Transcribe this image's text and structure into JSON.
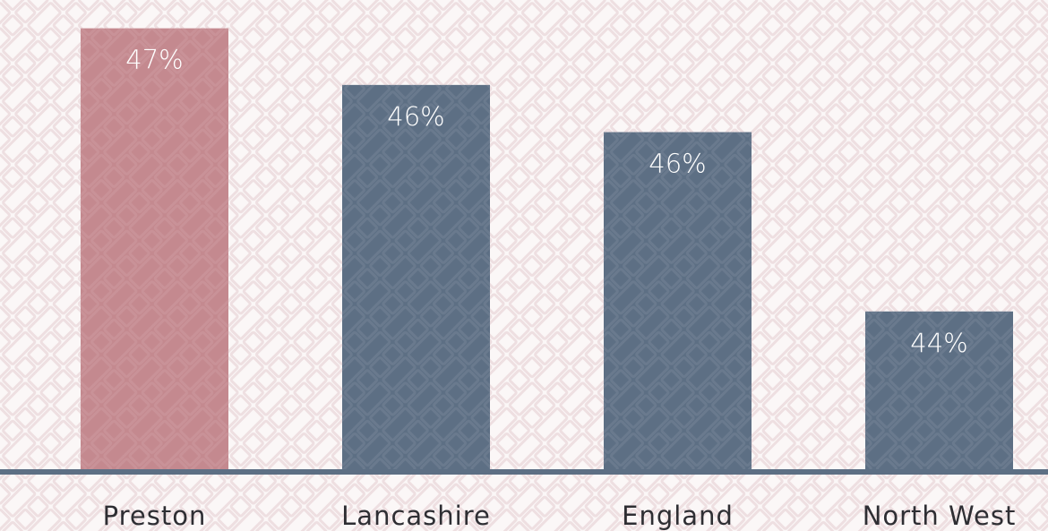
{
  "chart_data": {
    "type": "bar",
    "categories": [
      "Preston",
      "Lancashire",
      "England",
      "North West"
    ],
    "values": [
      47.0,
      46.4,
      45.9,
      44.0
    ],
    "value_labels": [
      "47%",
      "46%",
      "46%",
      "44%"
    ],
    "colors": [
      "#c4898f",
      "#5d6f84",
      "#5d6f84",
      "#5d6f84"
    ],
    "ylim": [
      42.3,
      47.3
    ]
  }
}
